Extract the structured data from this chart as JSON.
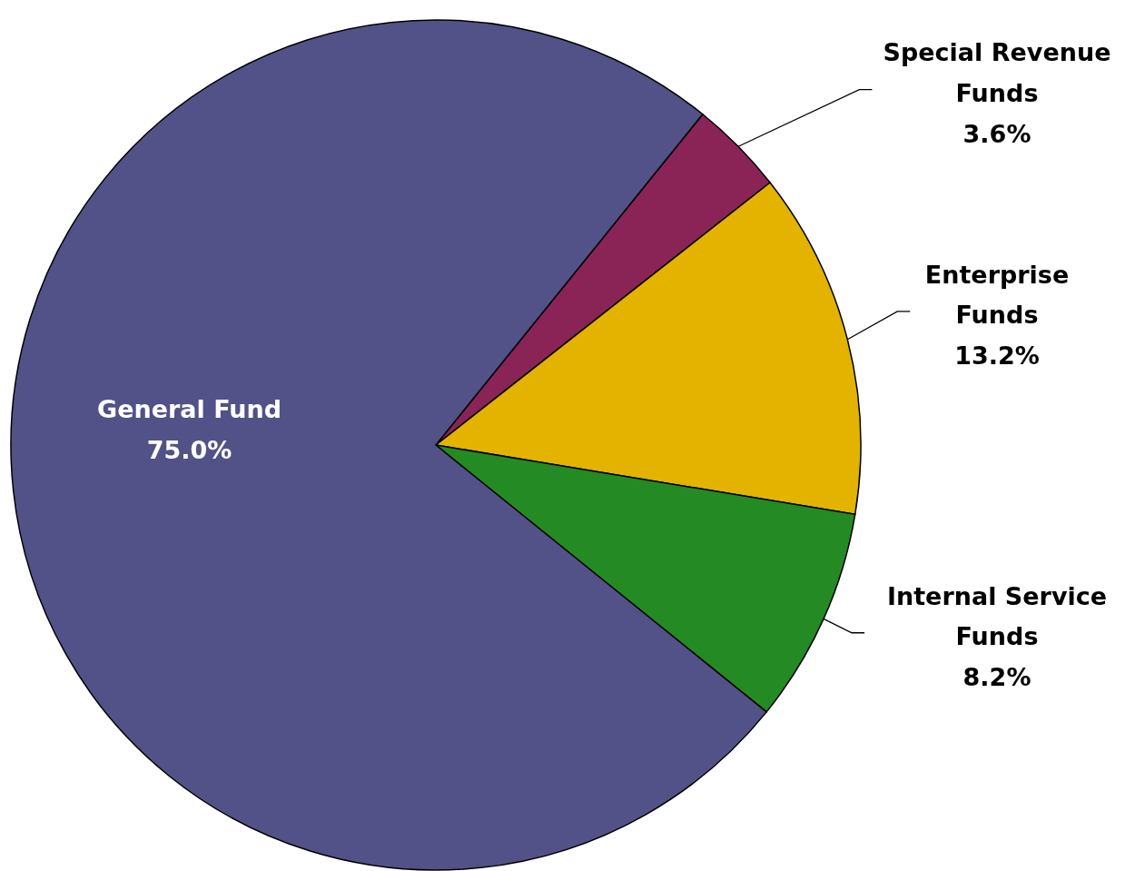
{
  "chart_data": {
    "type": "pie",
    "categories": [
      "Special Revenue Funds",
      "Enterprise Funds",
      "Internal Service Funds",
      "General Fund"
    ],
    "values": [
      3.6,
      13.2,
      8.2,
      75.0
    ],
    "value_labels": [
      "3.6%",
      "13.2%",
      "8.2%",
      "75.0%"
    ],
    "colors": [
      "#8a2456",
      "#e3b300",
      "#248a24",
      "#525288"
    ]
  }
}
